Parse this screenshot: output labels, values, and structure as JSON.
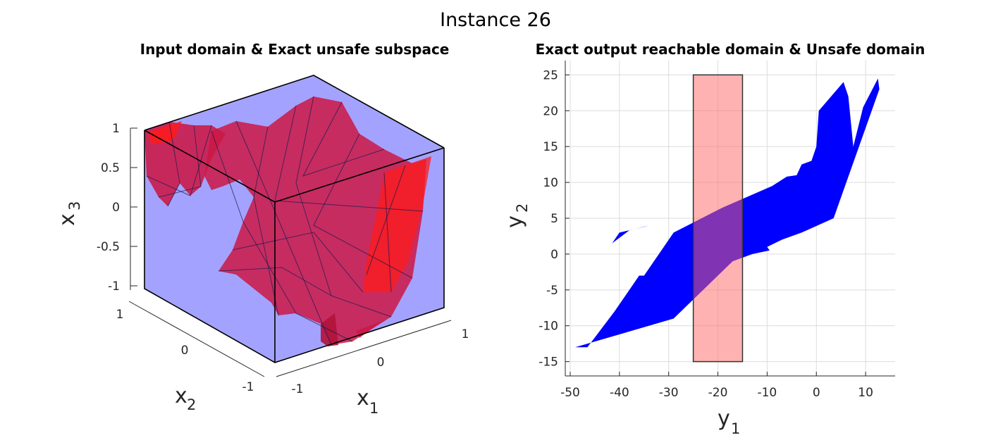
{
  "figure": {
    "title": "Instance 26"
  },
  "panel_left": {
    "title": "Input domain & Exact unsafe subspace",
    "x1_label": "x",
    "x1_sub": "1",
    "x2_label": "x",
    "x2_sub": "2",
    "x3_label": "x",
    "x3_sub": "3",
    "x1_ticks": [
      "-1",
      "0",
      "1"
    ],
    "x2_ticks": [
      "-1",
      "0",
      "1"
    ],
    "x3_ticks": [
      "-1",
      "-0.5",
      "0",
      "0.5",
      "1"
    ],
    "colors": {
      "input_domain": "#a3a3ff",
      "unsafe_subspace": "#cc1744",
      "edges": "#1a1a4d"
    }
  },
  "panel_right": {
    "title": "Exact output reachable domain & Unsafe domain",
    "xlabel": "y",
    "xsub": "1",
    "ylabel": "y",
    "ysub": "2",
    "colors": {
      "reachable": "#0000ff",
      "unsafe": "#ff6666",
      "overlap": "#7f007f"
    }
  },
  "chart_data": [
    {
      "type": "area",
      "title": "Input domain & Exact unsafe subspace",
      "xlabel": "x1",
      "ylabel": "x2",
      "zlabel": "x3",
      "xlim": [
        -1,
        1
      ],
      "ylim": [
        -1,
        1
      ],
      "zlim": [
        -1,
        1
      ],
      "series": [
        {
          "kind": "input_domain_box",
          "x1": [
            -1,
            1
          ],
          "x2": [
            -1,
            1
          ],
          "x3": [
            -1,
            1
          ]
        },
        {
          "kind": "unsafe_subspace_polytopes"
        }
      ],
      "grid": true
    },
    {
      "type": "area",
      "title": "Exact output reachable domain & Unsafe domain",
      "xlabel": "y1",
      "ylabel": "y2",
      "xlim": [
        -51,
        16
      ],
      "ylim": [
        -17,
        27
      ],
      "xticks": [
        -50,
        -40,
        -30,
        -20,
        -10,
        0,
        10
      ],
      "yticks": [
        -15,
        -10,
        -5,
        0,
        5,
        10,
        15,
        20,
        25
      ],
      "unsafe_region": {
        "x": [
          -25,
          -15
        ],
        "y": [
          -15,
          25
        ]
      },
      "reachable_outline": [
        [
          -49,
          -13
        ],
        [
          -46.5,
          -13
        ],
        [
          -41,
          -8
        ],
        [
          -36,
          -3
        ],
        [
          -35,
          -3
        ],
        [
          -29,
          3
        ],
        [
          -19,
          6.5
        ],
        [
          -9,
          9.5
        ],
        [
          -6,
          10.8
        ],
        [
          -4,
          11
        ],
        [
          -3,
          12.5
        ],
        [
          -1,
          13
        ],
        [
          0,
          15
        ],
        [
          0.5,
          20
        ],
        [
          5.5,
          24
        ],
        [
          6.5,
          22
        ],
        [
          7.5,
          15
        ],
        [
          9.5,
          20.5
        ],
        [
          12.5,
          24.5
        ],
        [
          12.8,
          23
        ],
        [
          3.5,
          5
        ],
        [
          -3,
          3
        ],
        [
          -7,
          2
        ],
        [
          -10,
          1
        ],
        [
          -9.5,
          0.5
        ],
        [
          -13,
          0
        ],
        [
          -17,
          -1
        ],
        [
          -29,
          -9
        ]
      ],
      "reachable_notch": [
        [
          -34,
          4
        ],
        [
          -38,
          3.3
        ],
        [
          -41.5,
          1.5
        ],
        [
          -40,
          3
        ],
        [
          -35,
          3.8
        ]
      ],
      "grid": true
    }
  ]
}
